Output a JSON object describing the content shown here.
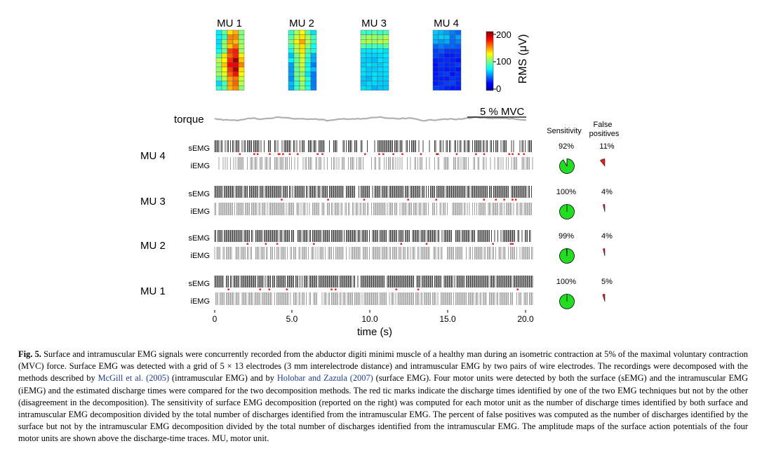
{
  "figure": {
    "map_titles": [
      "MU 1",
      "MU 2",
      "MU 3",
      "MU 4"
    ],
    "colorbar": {
      "label": "RMS (μV)",
      "ticks": [
        "200",
        "100",
        "0"
      ]
    },
    "torque_label": "torque",
    "mvc_label": "5 % MVC",
    "headers": {
      "sensitivity": "Sensitivity",
      "false_pos_line1": "False",
      "false_pos_line2": "positives"
    },
    "rows": [
      {
        "mu": "MU 4",
        "s_label": "sEMG",
        "i_label": "iEMG",
        "sensitivity": "92%",
        "sens_value": 92,
        "false_pos": "11%",
        "fp_value": 11
      },
      {
        "mu": "MU 3",
        "s_label": "sEMG",
        "i_label": "iEMG",
        "sensitivity": "100%",
        "sens_value": 100,
        "false_pos": "4%",
        "fp_value": 4
      },
      {
        "mu": "MU 2",
        "s_label": "sEMG",
        "i_label": "iEMG",
        "sensitivity": "99%",
        "sens_value": 99,
        "false_pos": "4%",
        "fp_value": 4
      },
      {
        "mu": "MU 1",
        "s_label": "sEMG",
        "i_label": "iEMG",
        "sensitivity": "100%",
        "sens_value": 100,
        "false_pos": "5%",
        "fp_value": 5
      }
    ],
    "x_axis": {
      "label": "time (s)",
      "ticks": [
        "0",
        "5.0",
        "10.0",
        "15.0",
        "20.0"
      ],
      "range": [
        0,
        20
      ]
    },
    "colors": {
      "pie_green": "#22dd22",
      "pie_red": "#dd2222",
      "spike": "#111111",
      "mismatch": "#e02020",
      "torque": "#b0b0b0"
    }
  },
  "caption": {
    "label": "Fig. 5.",
    "t1": " Surface and intramuscular EMG signals were concurrently recorded from the abductor digiti minimi muscle of a healthy man during an isometric contraction at 5% of the maximal voluntary contraction (MVC) force. Surface EMG was detected with a grid of 5 × 13 electrodes (3 mm interelectrode distance) and intramuscular EMG by two pairs of wire electrodes. The recordings were decomposed with the methods described by ",
    "ref1": "McGill et al. (2005)",
    "t2": " (intramuscular EMG) and by ",
    "ref2": "Holobar and Zazula (2007)",
    "t3": " (surface EMG). Four motor units were detected by both the surface (sEMG) and the intramuscular EMG (iEMG) and the estimated discharge times were compared for the two decomposition methods. The red tic marks indicate the discharge times identified by one of the two EMG techniques but not by the other (disagreement in the decomposition). The sensitivity of surface EMG decomposition (reported on the right) was computed for each motor unit as the number of discharge times identified by both surface and intramuscular EMG decomposition divided by the total number of discharges identified from the intramuscular EMG. The percent of false positives was computed as the number of discharges identified by the surface but not by the intramuscular EMG decomposition divided by the total number of discharges identified from the intramuscular EMG. The amplitude maps of the surface action potentials of the four motor units are shown above the discharge-time traces. MU, motor unit."
  }
}
